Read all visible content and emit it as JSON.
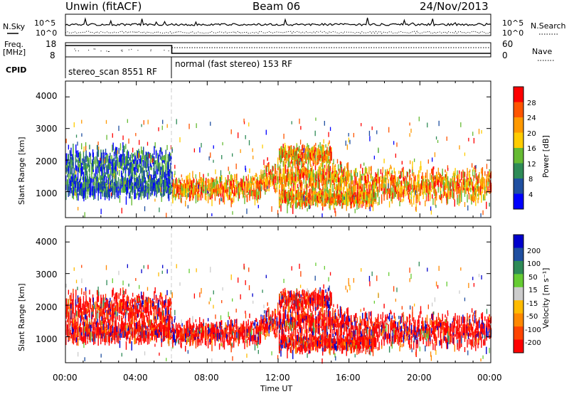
{
  "header": {
    "radar": "Unwin (fitACF)",
    "beam": "Beam 06",
    "date": "24/Nov/2013"
  },
  "noise_panel": {
    "left_label": "N.Sky",
    "right_label": "N.Search",
    "ticks": [
      "10^5",
      "10^0"
    ]
  },
  "freq_panel": {
    "left_label_1": "Freq.",
    "left_label_2": "[MHz]",
    "left_ticks": [
      "18",
      "8"
    ],
    "right_label": "Nave",
    "right_ticks": [
      "60",
      "0"
    ]
  },
  "cpid_panel": {
    "label": "CPID",
    "segments": [
      "stereo_scan 8551 RF",
      "normal (fast stereo) 153 RF"
    ]
  },
  "power_panel": {
    "ylabel": "Slant Range [km]",
    "yticks": [
      "4000",
      "3000",
      "2000",
      "1000"
    ],
    "colorbar_label": "Power [dB]",
    "colorbar_ticks": [
      "28",
      "24",
      "20",
      "16",
      "12",
      "8",
      "4"
    ]
  },
  "velocity_panel": {
    "ylabel": "Slant Range [km]",
    "yticks": [
      "4000",
      "3000",
      "2000",
      "1000"
    ],
    "colorbar_label": "Velocity [m s⁻¹]",
    "colorbar_ticks": [
      "200",
      "100",
      "50",
      "15",
      "-15",
      "-50",
      "-100",
      "-200"
    ]
  },
  "xaxis": {
    "ticks": [
      "00:00",
      "04:00",
      "08:00",
      "12:00",
      "16:00",
      "20:00",
      "00:00"
    ],
    "label": "Time UT"
  },
  "colors": {
    "power_scale": [
      "#0000ff",
      "#1f4fa0",
      "#2e8b57",
      "#66bb33",
      "#ffcc00",
      "#ff9900",
      "#ff5500",
      "#ff0000"
    ],
    "velocity_scale": [
      "#ff0000",
      "#ff4400",
      "#ff8800",
      "#ffbb00",
      "#cccccc",
      "#66cc33",
      "#2e8b57",
      "#1f4fa0",
      "#0000cc"
    ]
  },
  "chart_data": {
    "type": "heatmap",
    "x_range_hours_ut": [
      0,
      24
    ],
    "y_range_km": [
      180,
      4500
    ],
    "mode_change_hour": 6,
    "scatter_bands": [
      {
        "name": "",
        "start_h": 0,
        "end_h": 6,
        "center_km": 1950,
        "spread_km": 250
      },
      {
        "name": "",
        "start_h": 0,
        "end_h": 6,
        "center_km": 1250,
        "spread_km": 150
      },
      {
        "name": "",
        "start_h": 6,
        "end_h": 11,
        "center_km": 1200,
        "spread_km": 180
      },
      {
        "name": "",
        "start_h": 11,
        "end_h": 16,
        "center_km": 1550,
        "spread_km": 200
      },
      {
        "name": "",
        "start_h": 12,
        "end_h": 17.5,
        "center_km": 900,
        "spread_km": 120
      },
      {
        "name": "",
        "start_h": 16,
        "end_h": 24,
        "center_km": 1300,
        "spread_km": 250
      },
      {
        "name": "",
        "start_h": 12,
        "end_h": 15,
        "center_km": 2250,
        "spread_km": 150
      }
    ]
  }
}
